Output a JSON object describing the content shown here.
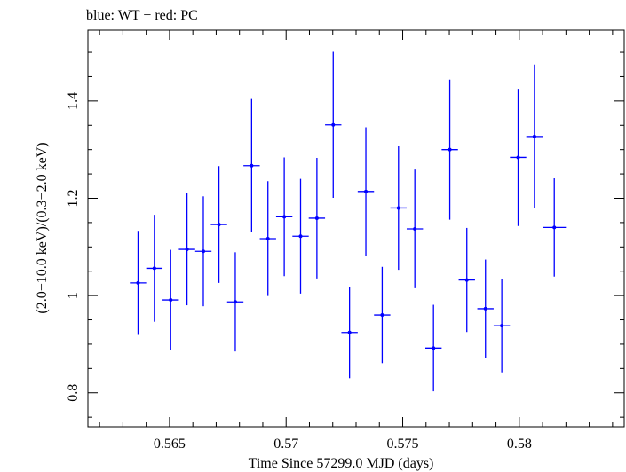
{
  "chart_data": {
    "type": "scatter",
    "title": "blue: WT − red: PC",
    "xlabel": "Time Since 57299.0 MJD (days)",
    "ylabel": "(2.0−10.0 keV)/(0.3−2.0 keV)",
    "xlim": [
      0.5615,
      0.5845
    ],
    "ylim": [
      0.7302,
      1.5457
    ],
    "x_ticks": [
      0.565,
      0.57,
      0.575,
      0.58
    ],
    "x_tick_labels": [
      "0.565",
      "0.57",
      "0.575",
      "0.58"
    ],
    "y_ticks": [
      0.8,
      1.0,
      1.2,
      1.4
    ],
    "y_tick_labels": [
      "0.8",
      "1",
      "1.2",
      "1.4"
    ],
    "grid": false,
    "series": [
      {
        "color": "#0000ff",
        "points": [
          {
            "x": 0.56365,
            "xerr": 0.00035,
            "y": 1.026,
            "yerr": 0.107
          },
          {
            "x": 0.56435,
            "xerr": 0.00035,
            "y": 1.056,
            "yerr": 0.11
          },
          {
            "x": 0.56505,
            "xerr": 0.00035,
            "y": 0.991,
            "yerr": 0.103
          },
          {
            "x": 0.56575,
            "xerr": 0.00035,
            "y": 1.095,
            "yerr": 0.115
          },
          {
            "x": 0.56645,
            "xerr": 0.00035,
            "y": 1.091,
            "yerr": 0.113
          },
          {
            "x": 0.56712,
            "xerr": 0.00035,
            "y": 1.146,
            "yerr": 0.12
          },
          {
            "x": 0.56782,
            "xerr": 0.00035,
            "y": 0.987,
            "yerr": 0.102
          },
          {
            "x": 0.56852,
            "xerr": 0.00035,
            "y": 1.267,
            "yerr": 0.137
          },
          {
            "x": 0.56922,
            "xerr": 0.00035,
            "y": 1.117,
            "yerr": 0.118
          },
          {
            "x": 0.56992,
            "xerr": 0.00035,
            "y": 1.162,
            "yerr": 0.122
          },
          {
            "x": 0.57062,
            "xerr": 0.00035,
            "y": 1.122,
            "yerr": 0.118
          },
          {
            "x": 0.57132,
            "xerr": 0.00035,
            "y": 1.159,
            "yerr": 0.124
          },
          {
            "x": 0.57202,
            "xerr": 0.00035,
            "y": 1.351,
            "yerr": 0.15
          },
          {
            "x": 0.57272,
            "xerr": 0.00035,
            "y": 0.924,
            "yerr": 0.094
          },
          {
            "x": 0.57342,
            "xerr": 0.00035,
            "y": 1.214,
            "yerr": 0.132
          },
          {
            "x": 0.57412,
            "xerr": 0.00035,
            "y": 0.96,
            "yerr": 0.099
          },
          {
            "x": 0.57482,
            "xerr": 0.00035,
            "y": 1.18,
            "yerr": 0.127
          },
          {
            "x": 0.57552,
            "xerr": 0.00035,
            "y": 1.137,
            "yerr": 0.122
          },
          {
            "x": 0.57632,
            "xerr": 0.00035,
            "y": 0.892,
            "yerr": 0.089
          },
          {
            "x": 0.57702,
            "xerr": 0.00035,
            "y": 1.3,
            "yerr": 0.144
          },
          {
            "x": 0.57775,
            "xerr": 0.00035,
            "y": 1.032,
            "yerr": 0.107
          },
          {
            "x": 0.57855,
            "xerr": 0.00035,
            "y": 0.973,
            "yerr": 0.101
          },
          {
            "x": 0.57925,
            "xerr": 0.00035,
            "y": 0.938,
            "yerr": 0.096
          },
          {
            "x": 0.57995,
            "xerr": 0.00035,
            "y": 1.284,
            "yerr": 0.141
          },
          {
            "x": 0.58065,
            "xerr": 0.00035,
            "y": 1.327,
            "yerr": 0.148
          },
          {
            "x": 0.5815,
            "xerr": 0.0005,
            "y": 1.14,
            "yerr": 0.101
          }
        ]
      }
    ]
  }
}
